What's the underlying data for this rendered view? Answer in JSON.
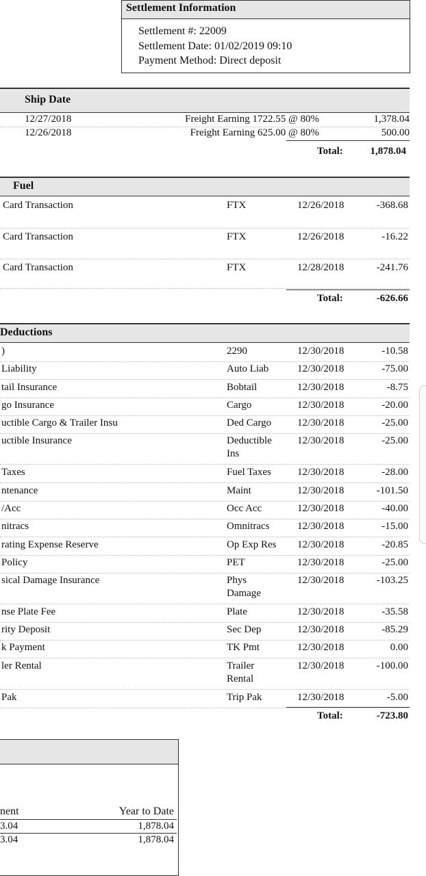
{
  "settlement": {
    "title": "Settlement Information",
    "number": "Settlement #: 22009",
    "date": "Settlement Date: 01/02/2019 09:10",
    "method": "Payment Method: Direct deposit"
  },
  "freight": {
    "ship_date_header": "Ship Date",
    "rows": [
      {
        "date": "12/27/2018",
        "desc": "Freight Earning 1722.55 @ 80%",
        "amount": "1,378.04"
      },
      {
        "date": "12/26/2018",
        "desc": "Freight Earning 625.00 @ 80%",
        "amount": "500.00"
      }
    ],
    "total_label": "Total:",
    "total_value": "1,878.04"
  },
  "fuel": {
    "header": "Fuel",
    "rows": [
      {
        "desc": "Card Transaction",
        "code": "FTX",
        "date": "12/26/2018",
        "amount": "-368.68"
      },
      {
        "desc": "Card Transaction",
        "code": "FTX",
        "date": "12/26/2018",
        "amount": "-16.22"
      },
      {
        "desc": "Card Transaction",
        "code": "FTX",
        "date": "12/28/2018",
        "amount": "-241.76"
      }
    ],
    "total_label": "Total:",
    "total_value": "-626.66"
  },
  "deductions": {
    "header": "Deductions",
    "rows": [
      {
        "desc": ")",
        "code": "2290",
        "code2": "",
        "date": "12/30/2018",
        "amount": "-10.58"
      },
      {
        "desc": "Liability",
        "code": "Auto Liab",
        "code2": "",
        "date": "12/30/2018",
        "amount": "-75.00"
      },
      {
        "desc": "tail Insurance",
        "code": "Bobtail",
        "code2": "",
        "date": "12/30/2018",
        "amount": "-8.75"
      },
      {
        "desc": "go Insurance",
        "code": "Cargo",
        "code2": "",
        "date": "12/30/2018",
        "amount": "-20.00"
      },
      {
        "desc": "uctible Cargo & Trailer Insu",
        "code": "Ded Cargo",
        "code2": "",
        "date": "12/30/2018",
        "amount": "-25.00"
      },
      {
        "desc": "uctible Insurance",
        "code": "Deductible",
        "code2": "Ins",
        "date": "12/30/2018",
        "amount": "-25.00"
      },
      {
        "desc": "Taxes",
        "code": "Fuel Taxes",
        "code2": "",
        "date": "12/30/2018",
        "amount": "-28.00"
      },
      {
        "desc": "ntenance",
        "code": "Maint",
        "code2": "",
        "date": "12/30/2018",
        "amount": "-101.50"
      },
      {
        "desc": "/Acc",
        "code": "Occ Acc",
        "code2": "",
        "date": "12/30/2018",
        "amount": "-40.00"
      },
      {
        "desc": "nitracs",
        "code": "Omnitracs",
        "code2": "",
        "date": "12/30/2018",
        "amount": "-15.00"
      },
      {
        "desc": "rating Expense Reserve",
        "code": "Op Exp Res",
        "code2": "",
        "date": "12/30/2018",
        "amount": "-20.85"
      },
      {
        "desc": "Policy",
        "code": "PET",
        "code2": "",
        "date": "12/30/2018",
        "amount": "-25.00"
      },
      {
        "desc": "sical Damage Insurance",
        "code": "Phys",
        "code2": "Damage",
        "date": "12/30/2018",
        "amount": "-103.25"
      },
      {
        "desc": "nse Plate Fee",
        "code": "Plate",
        "code2": "",
        "date": "12/30/2018",
        "amount": "-35.58"
      },
      {
        "desc": "rity Deposit",
        "code": "Sec Dep",
        "code2": "",
        "date": "12/30/2018",
        "amount": "-85.29"
      },
      {
        "desc": "k Payment",
        "code": "TK Pmt",
        "code2": "",
        "date": "12/30/2018",
        "amount": "0.00"
      },
      {
        "desc": "ler Rental",
        "code": "Trailer",
        "code2": "Rental",
        "date": "12/30/2018",
        "amount": "-100.00"
      },
      {
        "desc": "Pak",
        "code": "Trip Pak",
        "code2": "",
        "date": "12/30/2018",
        "amount": "-5.00"
      }
    ],
    "total_label": "Total:",
    "total_value": "-723.80"
  },
  "summary": {
    "col1_header": "nent",
    "col2_header": "Year to Date",
    "rows": [
      {
        "current": "3.04",
        "ytd": "1,878.04"
      },
      {
        "current": "3.04",
        "ytd": "1,878.04"
      }
    ]
  }
}
